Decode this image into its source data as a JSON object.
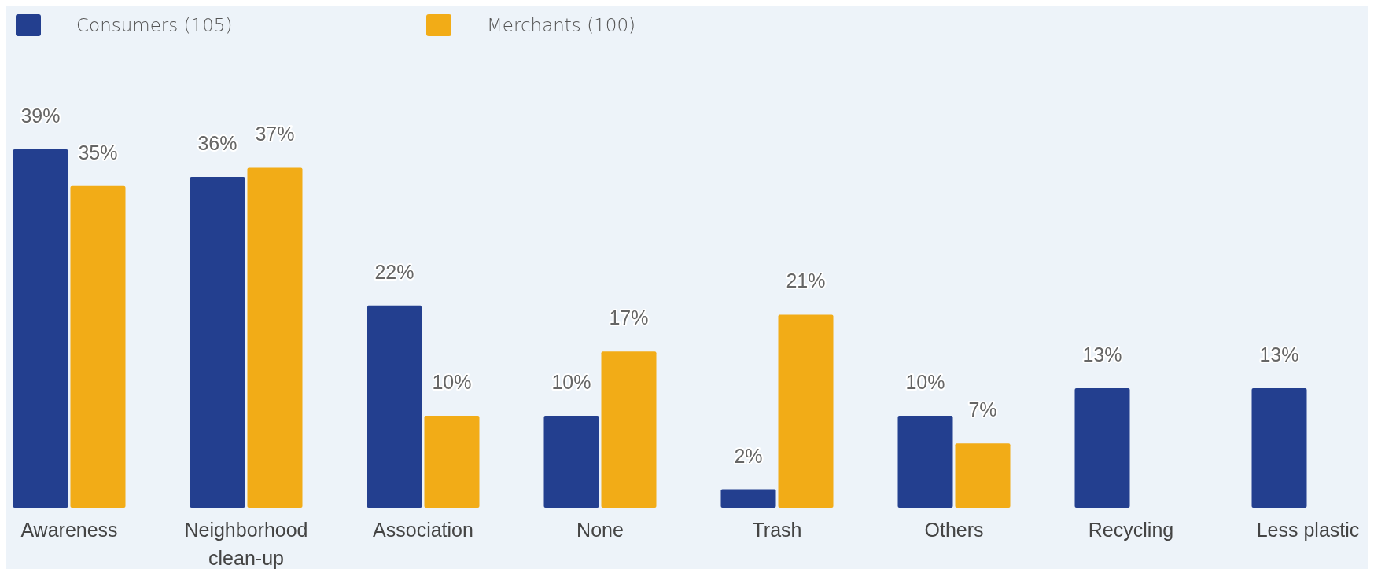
{
  "chart_data": {
    "type": "bar",
    "categories": [
      "Awareness",
      "Neighborhood clean-up",
      "Association",
      "None",
      "Trash",
      "Others",
      "Recycling",
      "Less plastic"
    ],
    "series": [
      {
        "name": "Consumers (105)",
        "color": "#233f8f",
        "values": [
          39,
          36,
          22,
          10,
          2,
          10,
          13,
          13
        ],
        "value_labels": [
          "39%",
          "36%",
          "22%",
          "10%",
          "2%",
          "10%",
          "13%",
          "13%"
        ]
      },
      {
        "name": "Merchants (100)",
        "color": "#f2ac17",
        "values": [
          35,
          37,
          10,
          17,
          21,
          7,
          null,
          null
        ],
        "value_labels": [
          "35%",
          "37%",
          "10%",
          "17%",
          "21%",
          "7%",
          null,
          null
        ]
      }
    ],
    "legend": "top left"
  }
}
